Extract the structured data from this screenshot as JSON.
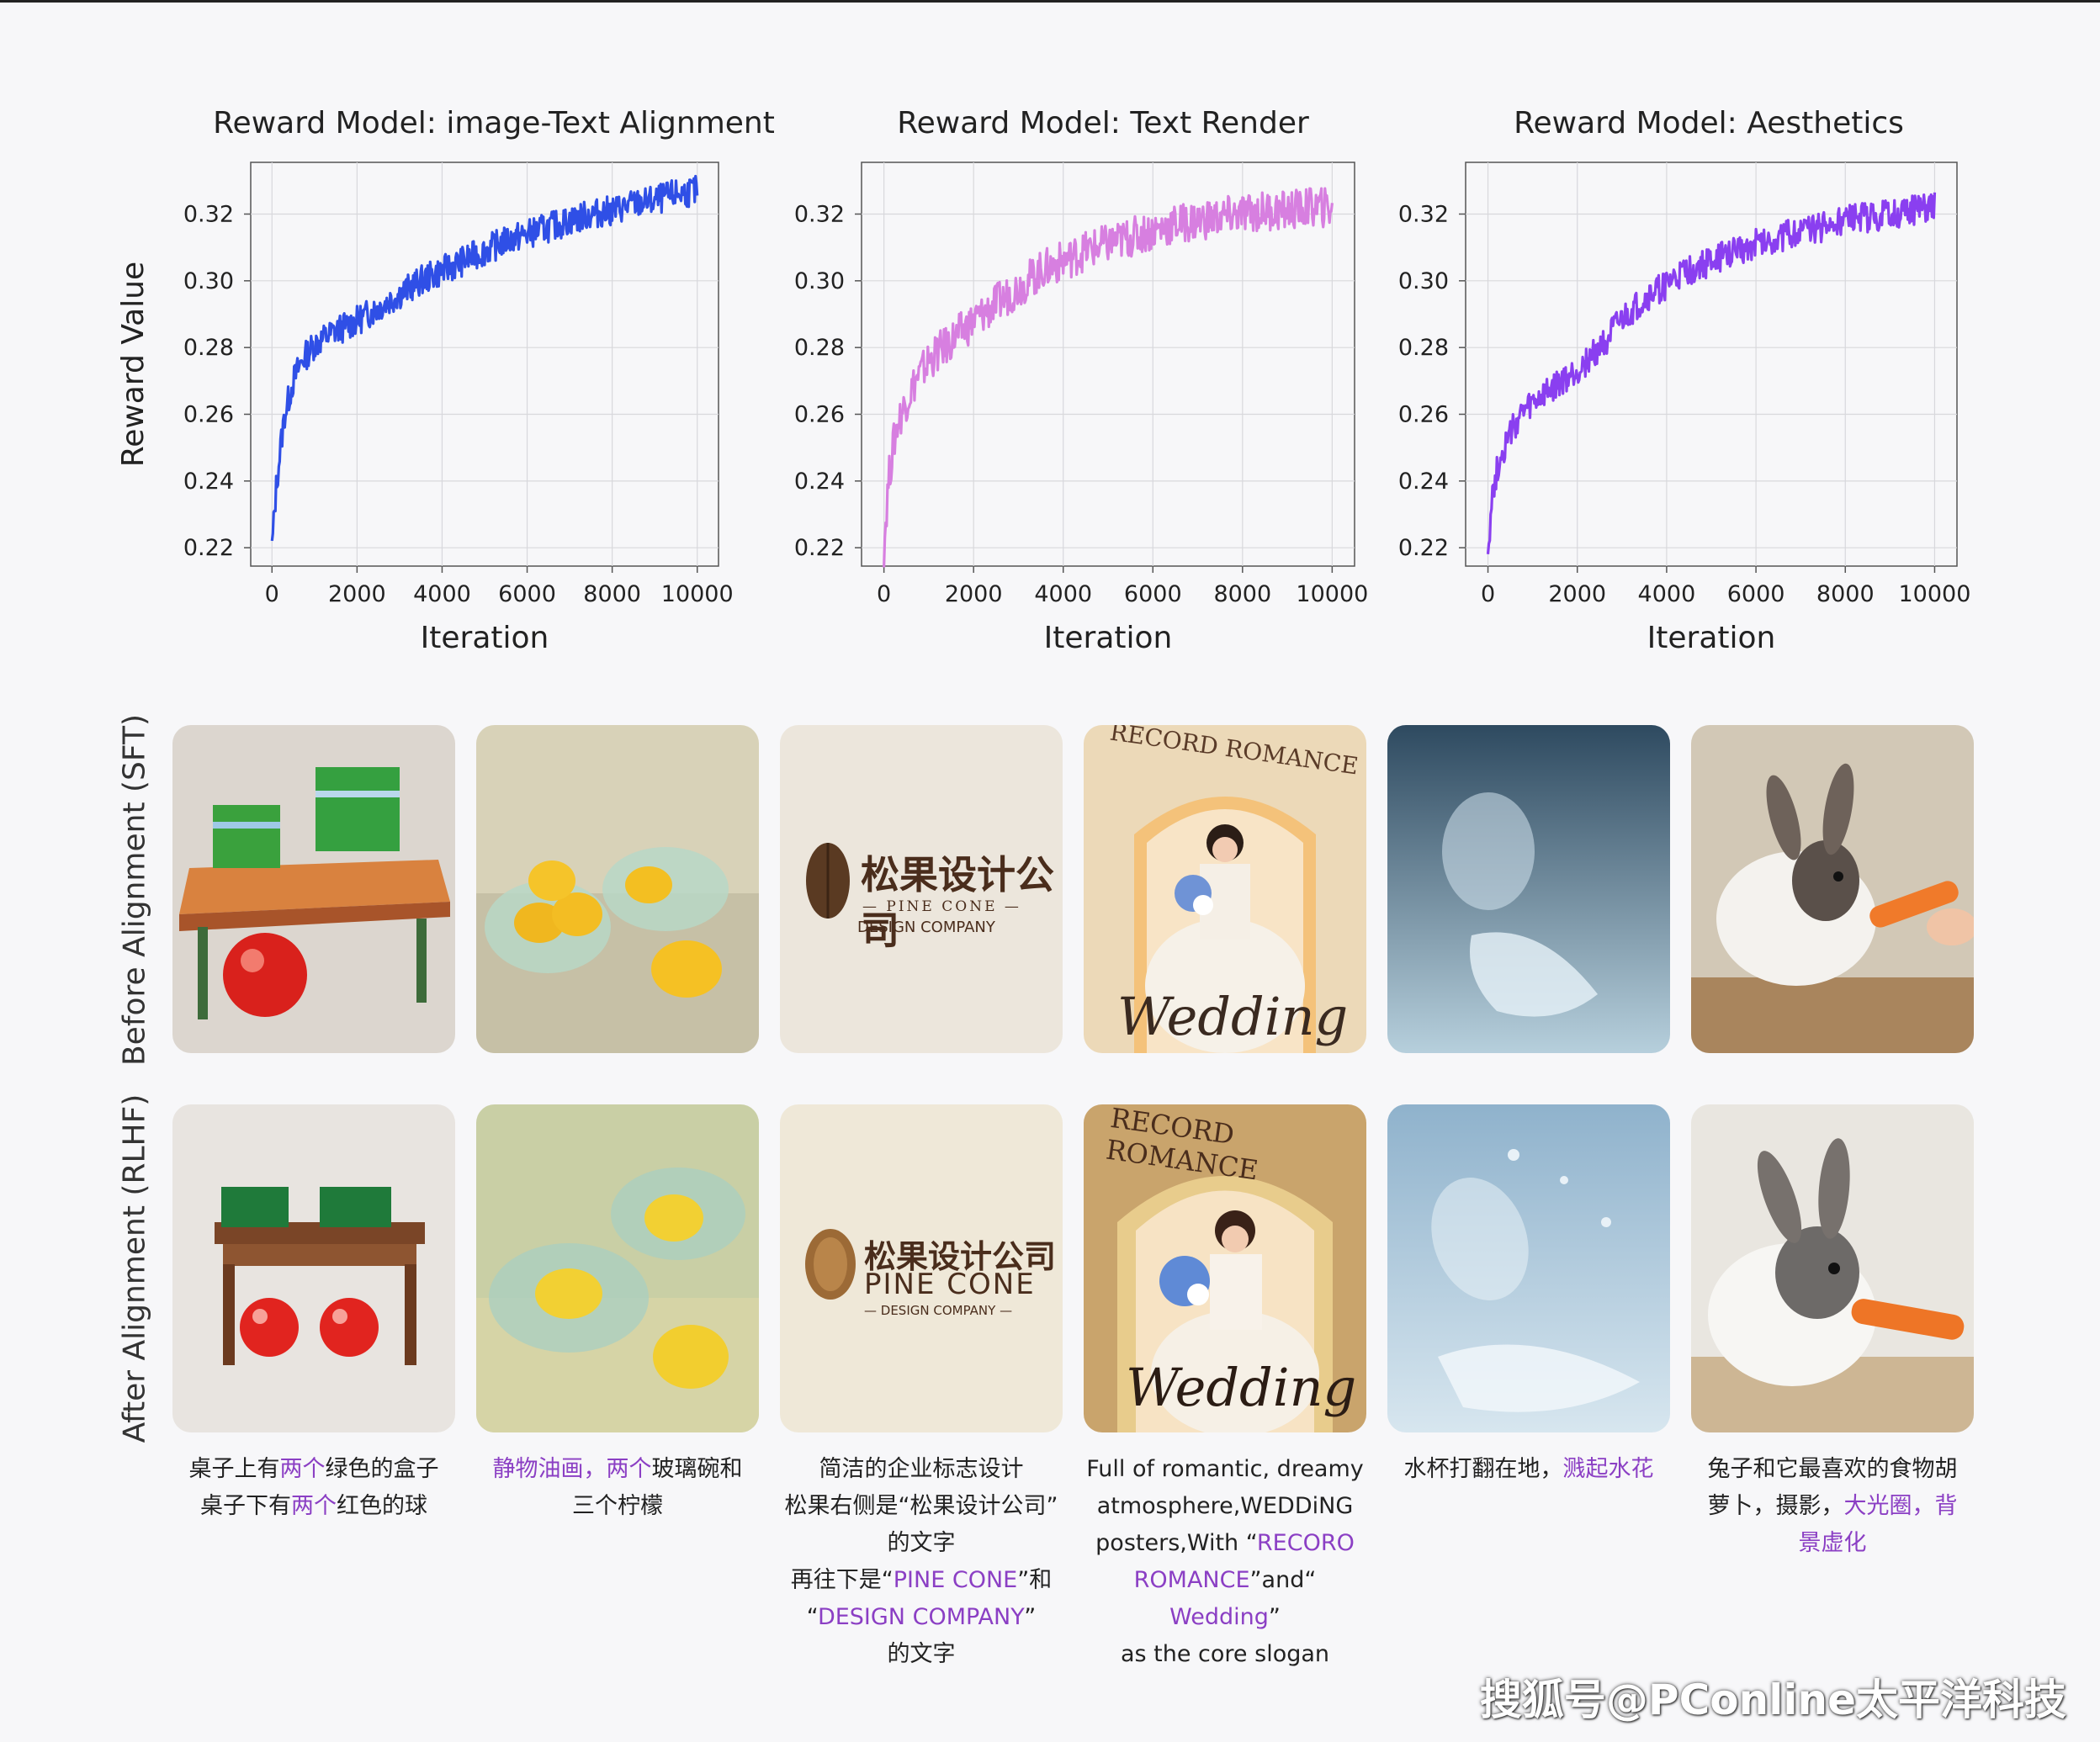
{
  "chart_data": [
    {
      "type": "line",
      "title": "Reward Model: image-Text Alignment",
      "xlabel": "Iteration",
      "ylabel": "Reward Value",
      "xlim": [
        0,
        10000
      ],
      "ylim": [
        0.215,
        0.335
      ],
      "xticks": [
        0,
        2000,
        4000,
        6000,
        8000,
        10000
      ],
      "yticks": [
        0.22,
        0.24,
        0.26,
        0.28,
        0.3,
        0.32
      ],
      "color": "#2f4fe6",
      "grid": true,
      "series": [
        {
          "x": [
            0,
            100,
            200,
            300,
            500,
            700,
            1000,
            1500,
            2000,
            2500,
            3000,
            3500,
            4000,
            4500,
            5000,
            5500,
            6000,
            6500,
            7000,
            7500,
            8000,
            8500,
            9000,
            9500,
            10000
          ],
          "y": [
            0.22,
            0.238,
            0.25,
            0.26,
            0.27,
            0.276,
            0.281,
            0.285,
            0.288,
            0.292,
            0.296,
            0.3,
            0.303,
            0.306,
            0.309,
            0.312,
            0.314,
            0.316,
            0.318,
            0.32,
            0.321,
            0.323,
            0.324,
            0.326,
            0.327
          ]
        }
      ]
    },
    {
      "type": "line",
      "title": "Reward Model: Text Render",
      "xlabel": "Iteration",
      "ylabel": "",
      "xlim": [
        0,
        10000
      ],
      "ylim": [
        0.215,
        0.335
      ],
      "xticks": [
        0,
        2000,
        4000,
        6000,
        8000,
        10000
      ],
      "yticks": [
        0.22,
        0.24,
        0.26,
        0.28,
        0.3,
        0.32
      ],
      "color": "#d77fe0",
      "grid": true,
      "series": [
        {
          "x": [
            0,
            100,
            200,
            300,
            500,
            700,
            1000,
            1500,
            2000,
            2500,
            3000,
            3500,
            4000,
            4500,
            5000,
            5500,
            6000,
            6500,
            7000,
            7500,
            8000,
            8500,
            9000,
            9500,
            10000
          ],
          "y": [
            0.22,
            0.24,
            0.25,
            0.257,
            0.264,
            0.27,
            0.276,
            0.282,
            0.288,
            0.293,
            0.298,
            0.303,
            0.306,
            0.309,
            0.311,
            0.313,
            0.315,
            0.317,
            0.318,
            0.319,
            0.32,
            0.321,
            0.321,
            0.322,
            0.322
          ]
        }
      ]
    },
    {
      "type": "line",
      "title": "Reward Model: Aesthetics",
      "xlabel": "Iteration",
      "ylabel": "",
      "xlim": [
        0,
        10000
      ],
      "ylim": [
        0.215,
        0.335
      ],
      "xticks": [
        0,
        2000,
        4000,
        6000,
        8000,
        10000
      ],
      "yticks": [
        0.22,
        0.24,
        0.26,
        0.28,
        0.3,
        0.32
      ],
      "color": "#8a3ff0",
      "grid": true,
      "series": [
        {
          "x": [
            0,
            100,
            200,
            300,
            500,
            700,
            1000,
            1500,
            2000,
            2500,
            3000,
            3500,
            4000,
            4500,
            5000,
            5500,
            6000,
            6500,
            7000,
            7500,
            8000,
            8500,
            9000,
            9500,
            10000
          ],
          "y": [
            0.22,
            0.236,
            0.243,
            0.248,
            0.254,
            0.259,
            0.263,
            0.268,
            0.273,
            0.28,
            0.288,
            0.294,
            0.299,
            0.303,
            0.306,
            0.309,
            0.311,
            0.313,
            0.315,
            0.316,
            0.318,
            0.319,
            0.32,
            0.321,
            0.323
          ]
        }
      ]
    }
  ],
  "tick_labels": {
    "y": [
      "0.22",
      "0.24",
      "0.26",
      "0.28",
      "0.30",
      "0.32"
    ],
    "x": [
      "0",
      "2000",
      "4000",
      "6000",
      "8000",
      "10000"
    ]
  },
  "rows": {
    "before": "Before Alignment (SFT)",
    "after": "After Alignment (RLHF)"
  },
  "logo": {
    "chinese": "松果设计公司",
    "pine_cone_small": "— PINE CONE —",
    "design_company": "DESIGN COMPANY",
    "pine_cone_big": "PINE CONE",
    "design_company_small": "— DESIGN COMPANY —"
  },
  "poster": {
    "record": "RECORD ROMANCE",
    "wedding": "Wedding"
  },
  "captions": [
    {
      "lines": [
        [
          "桌子上有",
          "两个",
          "绿色的盒子"
        ],
        [
          "桌子下有",
          "两个",
          "红色的球"
        ]
      ]
    },
    {
      "lines": [
        [
          "",
          "静物油画，两个",
          "玻璃碗和"
        ],
        [
          "三个柠檬",
          "",
          ""
        ]
      ]
    },
    {
      "lines": [
        [
          "简洁的企业标志设计",
          "",
          ""
        ],
        [
          "松果右侧是“松果设计公司”",
          "",
          ""
        ],
        [
          "的文字",
          "",
          ""
        ],
        [
          "再往下是“",
          "PINE CONE",
          "”和"
        ],
        [
          "“",
          "DESIGN COMPANY",
          "”"
        ],
        [
          "的文字",
          "",
          ""
        ]
      ]
    },
    {
      "lines": [
        [
          "Full of romantic, dreamy",
          "",
          ""
        ],
        [
          "atmosphere,WEDDiNG",
          "",
          ""
        ],
        [
          "posters,With “",
          "RECORO",
          ""
        ],
        [
          "",
          "ROMANCE",
          "”and“"
        ],
        [
          "",
          "Wedding",
          "”"
        ],
        [
          "as the core slogan",
          "",
          ""
        ]
      ]
    },
    {
      "lines": [
        [
          "水杯打翻在地，",
          "溅起水花",
          ""
        ]
      ]
    },
    {
      "lines": [
        [
          "兔子和它最喜欢的食物胡",
          "",
          ""
        ],
        [
          "萝卜，摄影，",
          "大光圈，背",
          ""
        ],
        [
          "",
          "景虚化",
          ""
        ]
      ]
    }
  ],
  "watermark": "搜狐号@PConline太平洋科技"
}
